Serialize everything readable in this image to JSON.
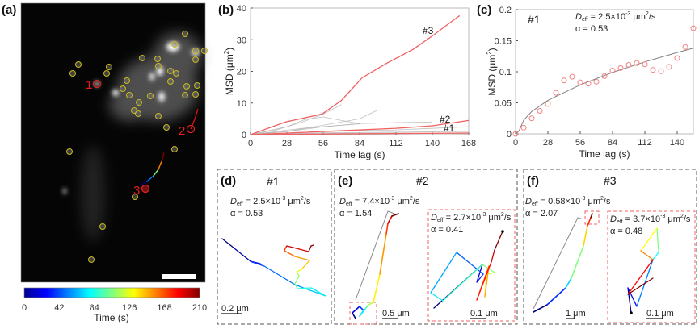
{
  "panel_labels": {
    "a": "(a)",
    "b": "(b)",
    "c": "(c)",
    "d": "(d)",
    "e": "(e)",
    "f": "(f)"
  },
  "panel_a": {
    "track_labels": [
      "1",
      "2",
      "3"
    ],
    "colorbar": {
      "ticks": [
        "0",
        "42",
        "84",
        "126",
        "168",
        "210"
      ],
      "label": "Time (s)",
      "colormap": "jet",
      "range": [
        0,
        210
      ]
    },
    "circle_color": "#c8b91c",
    "highlight_color": "#e02020"
  },
  "chart_data": [
    {
      "type": "line",
      "panel": "b",
      "xlabel": "Time lag (s)",
      "ylabel": {
        "text": "MSD (μm",
        "exp": "2",
        "close": ")"
      },
      "xlim": [
        0,
        168
      ],
      "ylim": [
        0,
        40
      ],
      "xticks": [
        "0",
        "28",
        "56",
        "84",
        "112",
        "140",
        "168"
      ],
      "yticks": [
        "0",
        "10",
        "20",
        "30",
        "40"
      ],
      "grid": false,
      "series": [
        {
          "name": "#3",
          "color": "#f06060",
          "x": [
            0,
            27,
            55,
            70,
            86,
            105,
            125,
            141,
            155,
            161
          ],
          "y": [
            0,
            4,
            6.5,
            10.8,
            18,
            22.6,
            26.9,
            31.5,
            35.8,
            37.6
          ]
        },
        {
          "name": "#2",
          "color": "#f06060",
          "x": [
            0,
            56,
            112,
            140,
            168
          ],
          "y": [
            0,
            1,
            2,
            2.8,
            4.5
          ]
        },
        {
          "name": "#1",
          "color": "#f06060",
          "x": [
            0,
            56,
            112,
            168
          ],
          "y": [
            0,
            0.2,
            0.35,
            0.5
          ]
        }
      ],
      "other_tracks": {
        "color": "#b0b0b0",
        "tracks": [
          {
            "x": [
              0,
              20,
              40,
              56,
              70
            ],
            "y": [
              0,
              1.5,
              4,
              6.5,
              9.5
            ]
          },
          {
            "x": [
              0,
              28,
              56,
              84,
              98
            ],
            "y": [
              0,
              1,
              3,
              5,
              7.8
            ]
          },
          {
            "x": [
              0,
              28,
              42,
              56,
              70,
              84
            ],
            "y": [
              0,
              2.5,
              4.8,
              5.6,
              4.5,
              3.5
            ]
          },
          {
            "x": [
              0,
              28,
              56,
              84,
              112,
              140
            ],
            "y": [
              0,
              1,
              2.5,
              3.5,
              3.8,
              4
            ]
          },
          {
            "x": [
              0,
              56,
              112,
              168
            ],
            "y": [
              0,
              1,
              1.5,
              2.5
            ]
          },
          {
            "x": [
              0,
              56,
              112,
              168
            ],
            "y": [
              0,
              0.6,
              0.8,
              1
            ]
          },
          {
            "x": [
              0,
              56,
              112,
              168
            ],
            "y": [
              0,
              0.4,
              0.5,
              0.3
            ]
          },
          {
            "x": [
              0,
              40,
              84
            ],
            "y": [
              0,
              2,
              3.4
            ]
          }
        ]
      }
    },
    {
      "type": "scatter",
      "panel": "c",
      "title": "#1",
      "xlabel": "Time lag (s)",
      "ylabel": {
        "text": "MSD (μm",
        "exp": "2",
        "close": ")"
      },
      "xlim": [
        0,
        154
      ],
      "ylim": [
        0,
        0.2
      ],
      "xticks": [
        "0",
        "28",
        "56",
        "84",
        "112",
        "140"
      ],
      "yticks": [
        "0",
        "0.05",
        "0.1",
        "0.15",
        "0.2"
      ],
      "grid": false,
      "points": {
        "color": "#f08080",
        "x": [
          0,
          7,
          14,
          21,
          28,
          35,
          42,
          49,
          56,
          63,
          70,
          77,
          84,
          91,
          98,
          105,
          112,
          119,
          126,
          133,
          140,
          147,
          154
        ],
        "y": [
          0,
          0.01,
          0.025,
          0.037,
          0.048,
          0.066,
          0.086,
          0.092,
          0.083,
          0.081,
          0.084,
          0.093,
          0.102,
          0.106,
          0.111,
          0.114,
          0.112,
          0.103,
          0.101,
          0.108,
          0.122,
          0.14,
          0.17
        ]
      },
      "fit": {
        "color": "#808080",
        "x": [
          0,
          3,
          7,
          14,
          28,
          56,
          84,
          112,
          140,
          154
        ],
        "y": [
          0,
          0.005,
          0.022,
          0.036,
          0.054,
          0.079,
          0.099,
          0.116,
          0.131,
          0.138
        ]
      }
    }
  ],
  "annotations": {
    "c": {
      "sym": "D",
      "sub": "eff",
      "val": " = 2.5×10",
      "exp": "-3",
      "unit": " μm",
      "uexp": "2",
      "tail": "/s",
      "alpha": "α = 0.53"
    },
    "d": {
      "title": "#1",
      "sym": "D",
      "sub": "eff",
      "val": " = 2.5×10",
      "exp": "-3",
      "unit": " μm",
      "uexp": "2",
      "tail": "/s",
      "alpha": "α = 0.53",
      "scale": "0.2 μm"
    },
    "e": {
      "title": "#2",
      "sym": "D",
      "sub": "eff",
      "val": " = 7.4×10",
      "exp": "-3",
      "unit": " μm",
      "uexp": "2",
      "tail": "/s",
      "alpha": "α = 1.54",
      "scale": "0.5 μm"
    },
    "e_inset": {
      "sym": "D",
      "sub": "eff",
      "val": " = 2.7×10",
      "exp": "-3",
      "unit": " μm",
      "uexp": "2",
      "tail": "/s",
      "alpha": "α = 0.41",
      "scale": "0.1 μm"
    },
    "f": {
      "title": "#3",
      "sym": "D",
      "sub": "eff",
      "val": " = 0.58×10",
      "exp": "-3",
      "unit": " μm",
      "uexp": "2",
      "tail": "/s",
      "alpha": "α = 2.07",
      "scale": "1 μm"
    },
    "f_inset": {
      "sym": "D",
      "sub": "eff",
      "val": " = 3.7×10",
      "exp": "-3",
      "unit": " μm",
      "uexp": "2",
      "tail": "/s",
      "alpha": "α = 0.48",
      "scale": "0.1 μm"
    }
  },
  "colors": {
    "highlight": "#f06060",
    "inset_box": "#f06060",
    "panel_box": "#555555"
  }
}
